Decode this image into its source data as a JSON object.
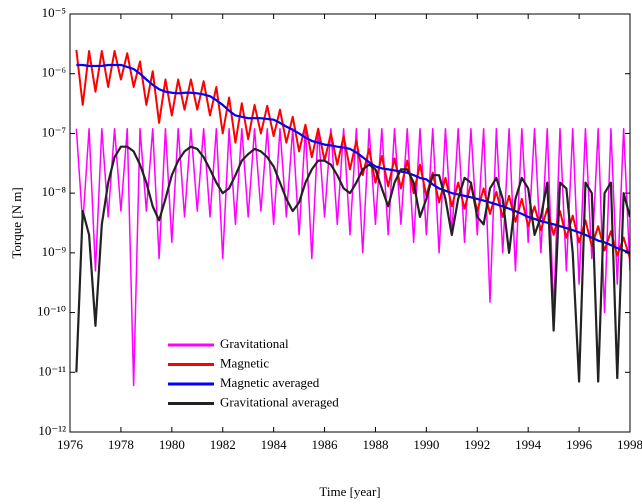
{
  "chart_data": {
    "type": "line",
    "yscale": "log",
    "xlabel": "Time [year]",
    "ylabel": "Torque  [N m]",
    "xlim": [
      1976,
      1998
    ],
    "xticks": [
      1976,
      1978,
      1980,
      1982,
      1984,
      1986,
      1988,
      1990,
      1992,
      1994,
      1996,
      1998
    ],
    "ylim": [
      1e-12,
      1e-05
    ],
    "yticks": [
      {
        "value": 1e-12,
        "label": "10⁻¹²"
      },
      {
        "value": 1e-11,
        "label": "10⁻¹¹"
      },
      {
        "value": 1e-10,
        "label": "10⁻¹⁰"
      },
      {
        "value": 1e-09,
        "label": "10⁻⁹"
      },
      {
        "value": 1e-08,
        "label": "10⁻⁸"
      },
      {
        "value": 1e-07,
        "label": "10⁻⁷"
      },
      {
        "value": 1e-06,
        "label": "10⁻⁶"
      },
      {
        "value": 1e-05,
        "label": "10⁻⁵"
      }
    ],
    "legend": "lower left",
    "x": [
      1976.25,
      1976.5,
      1976.75,
      1977,
      1977.25,
      1977.5,
      1977.75,
      1978,
      1978.25,
      1978.5,
      1978.75,
      1979,
      1979.25,
      1979.5,
      1979.75,
      1980,
      1980.25,
      1980.5,
      1980.75,
      1981,
      1981.25,
      1981.5,
      1981.75,
      1982,
      1982.25,
      1982.5,
      1982.75,
      1983,
      1983.25,
      1983.5,
      1983.75,
      1984,
      1984.25,
      1984.5,
      1984.75,
      1985,
      1985.25,
      1985.5,
      1985.75,
      1986,
      1986.25,
      1986.5,
      1986.75,
      1987,
      1987.25,
      1987.5,
      1987.75,
      1988,
      1988.25,
      1988.5,
      1988.75,
      1989,
      1989.25,
      1989.5,
      1989.75,
      1990,
      1990.25,
      1990.5,
      1990.75,
      1991,
      1991.25,
      1991.5,
      1991.75,
      1992,
      1992.25,
      1992.5,
      1992.75,
      1993,
      1993.25,
      1993.5,
      1993.75,
      1994,
      1994.25,
      1994.5,
      1994.75,
      1995,
      1995.25,
      1995.5,
      1995.75,
      1996,
      1996.25,
      1996.5,
      1996.75,
      1997,
      1997.25,
      1997.5,
      1997.75,
      1998
    ],
    "series": [
      {
        "name": "Gravitational",
        "color": "#ff00ff",
        "width": 1.5,
        "values": [
          1.2e-07,
          3e-09,
          1.2e-07,
          5e-10,
          1.2e-07,
          4e-09,
          1.2e-07,
          5e-09,
          1.2e-07,
          6e-12,
          1.2e-07,
          5e-09,
          1.2e-07,
          8e-10,
          1.2e-07,
          1.5e-09,
          1.2e-07,
          4e-09,
          1.2e-07,
          5e-09,
          1.2e-07,
          4e-09,
          1.2e-07,
          8e-10,
          1.2e-07,
          3e-09,
          1.2e-07,
          4e-09,
          1.2e-07,
          5e-09,
          1.2e-07,
          3e-09,
          1.2e-07,
          4e-09,
          1.2e-07,
          2e-09,
          1.2e-07,
          8e-10,
          1.2e-07,
          4e-09,
          1.2e-07,
          3e-09,
          1.2e-07,
          2e-09,
          1.2e-07,
          1e-09,
          1.2e-07,
          3e-09,
          1.2e-07,
          2e-09,
          1.2e-07,
          3e-09,
          1.2e-07,
          1.5e-09,
          1.2e-07,
          2e-09,
          1.2e-07,
          1e-09,
          1.2e-07,
          2e-09,
          1.2e-07,
          1.5e-09,
          1.2e-07,
          2e-09,
          1.2e-07,
          1.5e-10,
          1.2e-07,
          1e-09,
          1.2e-07,
          5e-10,
          1.2e-07,
          1.5e-09,
          1.2e-07,
          1e-09,
          1.2e-07,
          1e-10,
          1.2e-07,
          5e-10,
          1.2e-07,
          3e-10,
          1.2e-07,
          8e-10,
          1.2e-07,
          1e-10,
          1.2e-07,
          3e-10,
          1.2e-07,
          5e-10
        ]
      },
      {
        "name": "Magnetic",
        "color": "#ff0000",
        "width": 2,
        "values": [
          2.5e-06,
          3e-07,
          2.4e-06,
          5e-07,
          2.4e-06,
          6e-07,
          2.4e-06,
          8e-07,
          2.2e-06,
          6e-07,
          1.6e-06,
          3e-07,
          1.1e-06,
          1.5e-07,
          8e-07,
          2e-07,
          8e-07,
          2.5e-07,
          8e-07,
          2.5e-07,
          7.5e-07,
          2e-07,
          6e-07,
          1e-07,
          4e-07,
          7e-08,
          3.2e-07,
          8e-08,
          3e-07,
          1e-07,
          2.9e-07,
          9e-08,
          2.5e-07,
          7e-08,
          1.9e-07,
          5e-08,
          1.4e-07,
          4e-08,
          1.2e-07,
          3.5e-08,
          1e-07,
          3e-08,
          9e-08,
          2.5e-08,
          7.5e-08,
          2e-08,
          5.5e-08,
          1.5e-08,
          4.2e-08,
          1.3e-08,
          3.8e-08,
          1.2e-08,
          3.5e-08,
          1e-08,
          3e-08,
          9e-09,
          2.2e-08,
          7e-09,
          1.8e-08,
          6e-09,
          1.5e-08,
          5.5e-09,
          1.4e-08,
          5e-09,
          1.2e-08,
          4.5e-09,
          1.05e-08,
          4e-09,
          9e-09,
          3.3e-09,
          8e-09,
          2.8e-09,
          6e-09,
          2.4e-09,
          5.5e-09,
          2e-09,
          5e-09,
          1.8e-09,
          4.2e-09,
          1.5e-09,
          3.5e-09,
          1.3e-09,
          2.8e-09,
          1.1e-09,
          2.3e-09,
          9e-10,
          1.8e-09,
          8e-10
        ]
      },
      {
        "name": "Magnetic averaged",
        "color": "#0000ff",
        "width": 2.2,
        "values": [
          1.4e-06,
          1.4e-06,
          1.35e-06,
          1.35e-06,
          1.35e-06,
          1.4e-06,
          1.4e-06,
          1.4e-06,
          1.3e-06,
          1.2e-06,
          1e-06,
          8e-07,
          6.5e-07,
          5.5e-07,
          5e-07,
          4.8e-07,
          4.7e-07,
          4.8e-07,
          4.8e-07,
          4.7e-07,
          4.5e-07,
          4.2e-07,
          3.6e-07,
          3e-07,
          2.4e-07,
          2e-07,
          1.9e-07,
          1.8e-07,
          1.8e-07,
          1.8e-07,
          1.75e-07,
          1.7e-07,
          1.5e-07,
          1.3e-07,
          1.15e-07,
          1e-07,
          8.5e-08,
          7.5e-08,
          7e-08,
          6.5e-08,
          6.3e-08,
          6e-08,
          5.8e-08,
          5.5e-08,
          4.8e-08,
          4e-08,
          3.3e-08,
          2.8e-08,
          2.6e-08,
          2.5e-08,
          2.4e-08,
          2.3e-08,
          2.2e-08,
          2e-08,
          1.8e-08,
          1.7e-08,
          1.4e-08,
          1.2e-08,
          1.1e-08,
          1e-08,
          9.5e-09,
          9e-09,
          8.5e-09,
          8e-09,
          7.5e-09,
          7e-09,
          6.5e-09,
          6e-09,
          5.5e-09,
          5e-09,
          4.5e-09,
          4e-09,
          3.7e-09,
          3.4e-09,
          3.2e-09,
          3e-09,
          2.8e-09,
          2.6e-09,
          2.4e-09,
          2.2e-09,
          2e-09,
          1.8e-09,
          1.6e-09,
          1.5e-09,
          1.35e-09,
          1.2e-09,
          1.1e-09,
          1e-09
        ]
      },
      {
        "name": "Gravitational averaged",
        "color": "#222222",
        "width": 2.2,
        "values": [
          1e-11,
          5e-09,
          2e-09,
          6e-11,
          3e-09,
          1.5e-08,
          4e-08,
          6e-08,
          6e-08,
          5e-08,
          3e-08,
          1.5e-08,
          6e-09,
          3.5e-09,
          8e-09,
          2e-08,
          3.5e-08,
          5e-08,
          6e-08,
          5.5e-08,
          4e-08,
          2.5e-08,
          1.5e-08,
          1e-08,
          1.2e-08,
          2e-08,
          3.5e-08,
          4.5e-08,
          5.5e-08,
          5e-08,
          4e-08,
          2.8e-08,
          1.5e-08,
          8e-09,
          5e-09,
          7e-09,
          1.5e-08,
          2.5e-08,
          3.5e-08,
          3.5e-08,
          3e-08,
          2e-08,
          1.2e-08,
          1e-08,
          1.5e-08,
          2.5e-08,
          3e-08,
          2.5e-08,
          1.2e-08,
          6e-09,
          1.5e-08,
          2.5e-08,
          2.5e-08,
          1.5e-08,
          4e-09,
          8e-09,
          2e-08,
          2e-08,
          8e-09,
          2e-09,
          8e-09,
          1.8e-08,
          1.5e-08,
          4e-09,
          3e-09,
          1.2e-08,
          1.8e-08,
          8e-09,
          1e-09,
          8e-09,
          1.8e-08,
          1.2e-08,
          2e-09,
          4e-09,
          1.5e-08,
          5e-11,
          1.5e-08,
          1.2e-08,
          1e-09,
          7e-12,
          1.5e-08,
          1e-08,
          7e-12,
          1e-08,
          1.5e-08,
          8e-12,
          1e-08,
          4e-09
        ]
      }
    ]
  }
}
